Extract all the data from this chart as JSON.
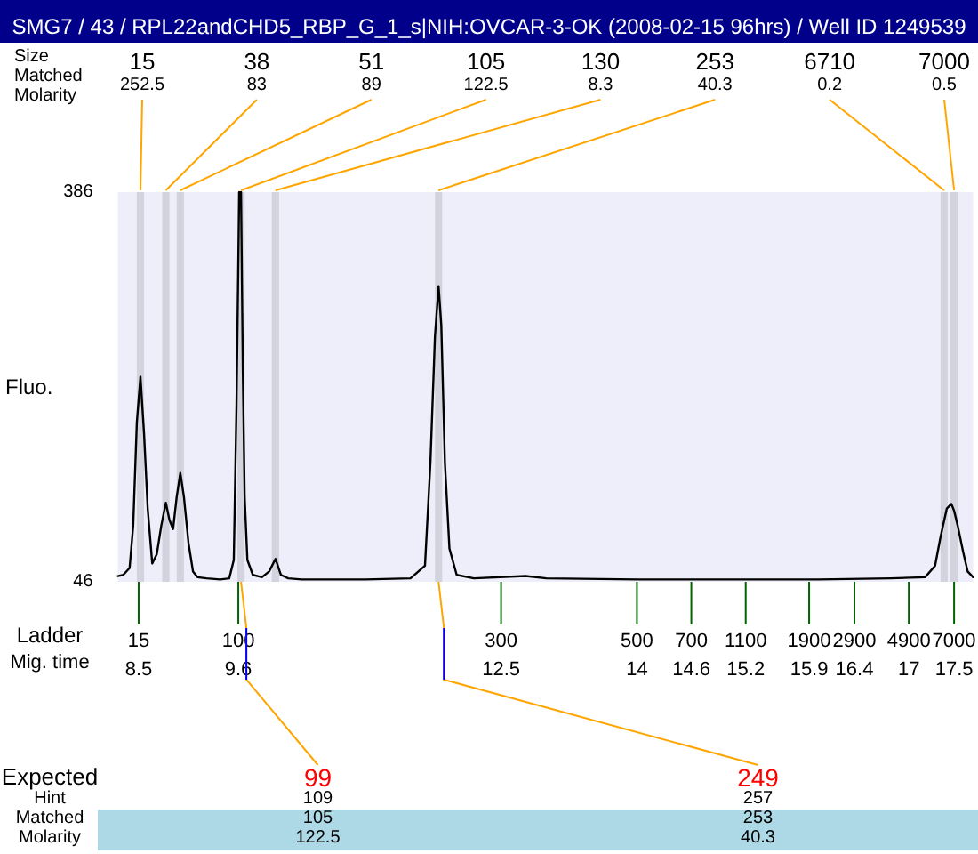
{
  "chart_data": {
    "type": "line",
    "title": "SMG7 / 43 / RPL22andCHD5_RBP_G_1_s|NIH:OVCAR-3-OK (2008-02-15 96hrs) / Well ID 1249539",
    "xlabel": "Mig. time",
    "ylabel": "Fluo.",
    "x": [
      8.27,
      8.33,
      8.4,
      8.44,
      8.48,
      8.52,
      8.56,
      8.6,
      8.65,
      8.7,
      8.75,
      8.8,
      8.84,
      8.88,
      8.92,
      8.96,
      9.0,
      9.05,
      9.1,
      9.15,
      9.25,
      9.4,
      9.5,
      9.55,
      9.58,
      9.61,
      9.63,
      9.65,
      9.67,
      9.7,
      9.76,
      9.86,
      9.94,
      10.01,
      10.07,
      10.15,
      10.3,
      11.0,
      11.5,
      11.66,
      11.72,
      11.77,
      11.81,
      11.84,
      11.88,
      11.93,
      12.01,
      12.2,
      12.77,
      13.0,
      14.0,
      15.0,
      16.0,
      16.8,
      17.18,
      17.29,
      17.35,
      17.42,
      17.47,
      17.5,
      17.54,
      17.6,
      17.65,
      17.71
    ],
    "series": [
      {
        "color": "#000000",
        "values": [
          51,
          52,
          58,
          95,
          185,
          225,
          175,
          110,
          62,
          70,
          95,
          115,
          100,
          92,
          120,
          141,
          120,
          80,
          55,
          50,
          49,
          48,
          49,
          65,
          200,
          386,
          386,
          230,
          120,
          65,
          52,
          50,
          55,
          66,
          52,
          49,
          48,
          48,
          49,
          60,
          150,
          260,
          304,
          270,
          150,
          75,
          52,
          49,
          51,
          49,
          48,
          48,
          48,
          49,
          50,
          60,
          85,
          110,
          114,
          108,
          95,
          72,
          55,
          50
        ]
      }
    ],
    "xlim": [
      8.27,
      17.71
    ],
    "xticks": [
      8.5,
      9.6,
      12.5,
      14,
      14.6,
      15.2,
      15.9,
      16.4,
      17,
      17.5
    ],
    "ylim": [
      46,
      386
    ],
    "yticks": [
      46,
      386
    ],
    "bands": [
      {
        "axis": "x",
        "from": 8.48,
        "to": 8.56,
        "color": "#d3d3de"
      },
      {
        "axis": "x",
        "from": 8.76,
        "to": 8.84,
        "color": "#d3d3de"
      },
      {
        "axis": "x",
        "from": 8.92,
        "to": 9.0,
        "color": "#d3d3de"
      },
      {
        "axis": "x",
        "from": 9.59,
        "to": 9.67,
        "color": "#d3d3de"
      },
      {
        "axis": "x",
        "from": 9.97,
        "to": 10.05,
        "color": "#d3d3de"
      },
      {
        "axis": "x",
        "from": 11.77,
        "to": 11.85,
        "color": "#d3d3de"
      },
      {
        "axis": "x",
        "from": 17.35,
        "to": 17.43,
        "color": "#d3d3de"
      },
      {
        "axis": "x",
        "from": 17.46,
        "to": 17.54,
        "color": "#d3d3de"
      }
    ],
    "annotations": [
      "Size",
      "Matched",
      "Molarity",
      "Ladder",
      "15",
      "100",
      "300",
      "500",
      "700",
      "1100",
      "1900",
      "2900",
      "4900",
      "7000",
      "252.5",
      "83",
      "89",
      "122.5",
      "8.3",
      "40.3",
      "0.2",
      "0.5",
      "Expected",
      "Hint",
      "Matched",
      "Molarity",
      "109",
      "105",
      "122.5",
      "257",
      "253",
      "40.3",
      {
        "text": "15",
        "x": 8.52,
        "y": 386
      },
      {
        "text": "38",
        "x": 8.8,
        "y": 386
      },
      {
        "text": "51",
        "x": 8.96,
        "y": 386
      },
      {
        "text": "105",
        "x": 9.63,
        "y": 386
      },
      {
        "text": "130",
        "x": 10.01,
        "y": 386
      },
      {
        "text": "253",
        "x": 11.81,
        "y": 386
      },
      {
        "text": "6710",
        "x": 17.39,
        "y": 386
      },
      {
        "text": "7000",
        "x": 17.5,
        "y": 386
      },
      {
        "text": "99",
        "x": 9.63,
        "y": 46
      },
      {
        "text": "249",
        "x": 11.81,
        "y": 46
      }
    ],
    "grid": false,
    "marker": "none",
    "line_style": "solid"
  }
}
